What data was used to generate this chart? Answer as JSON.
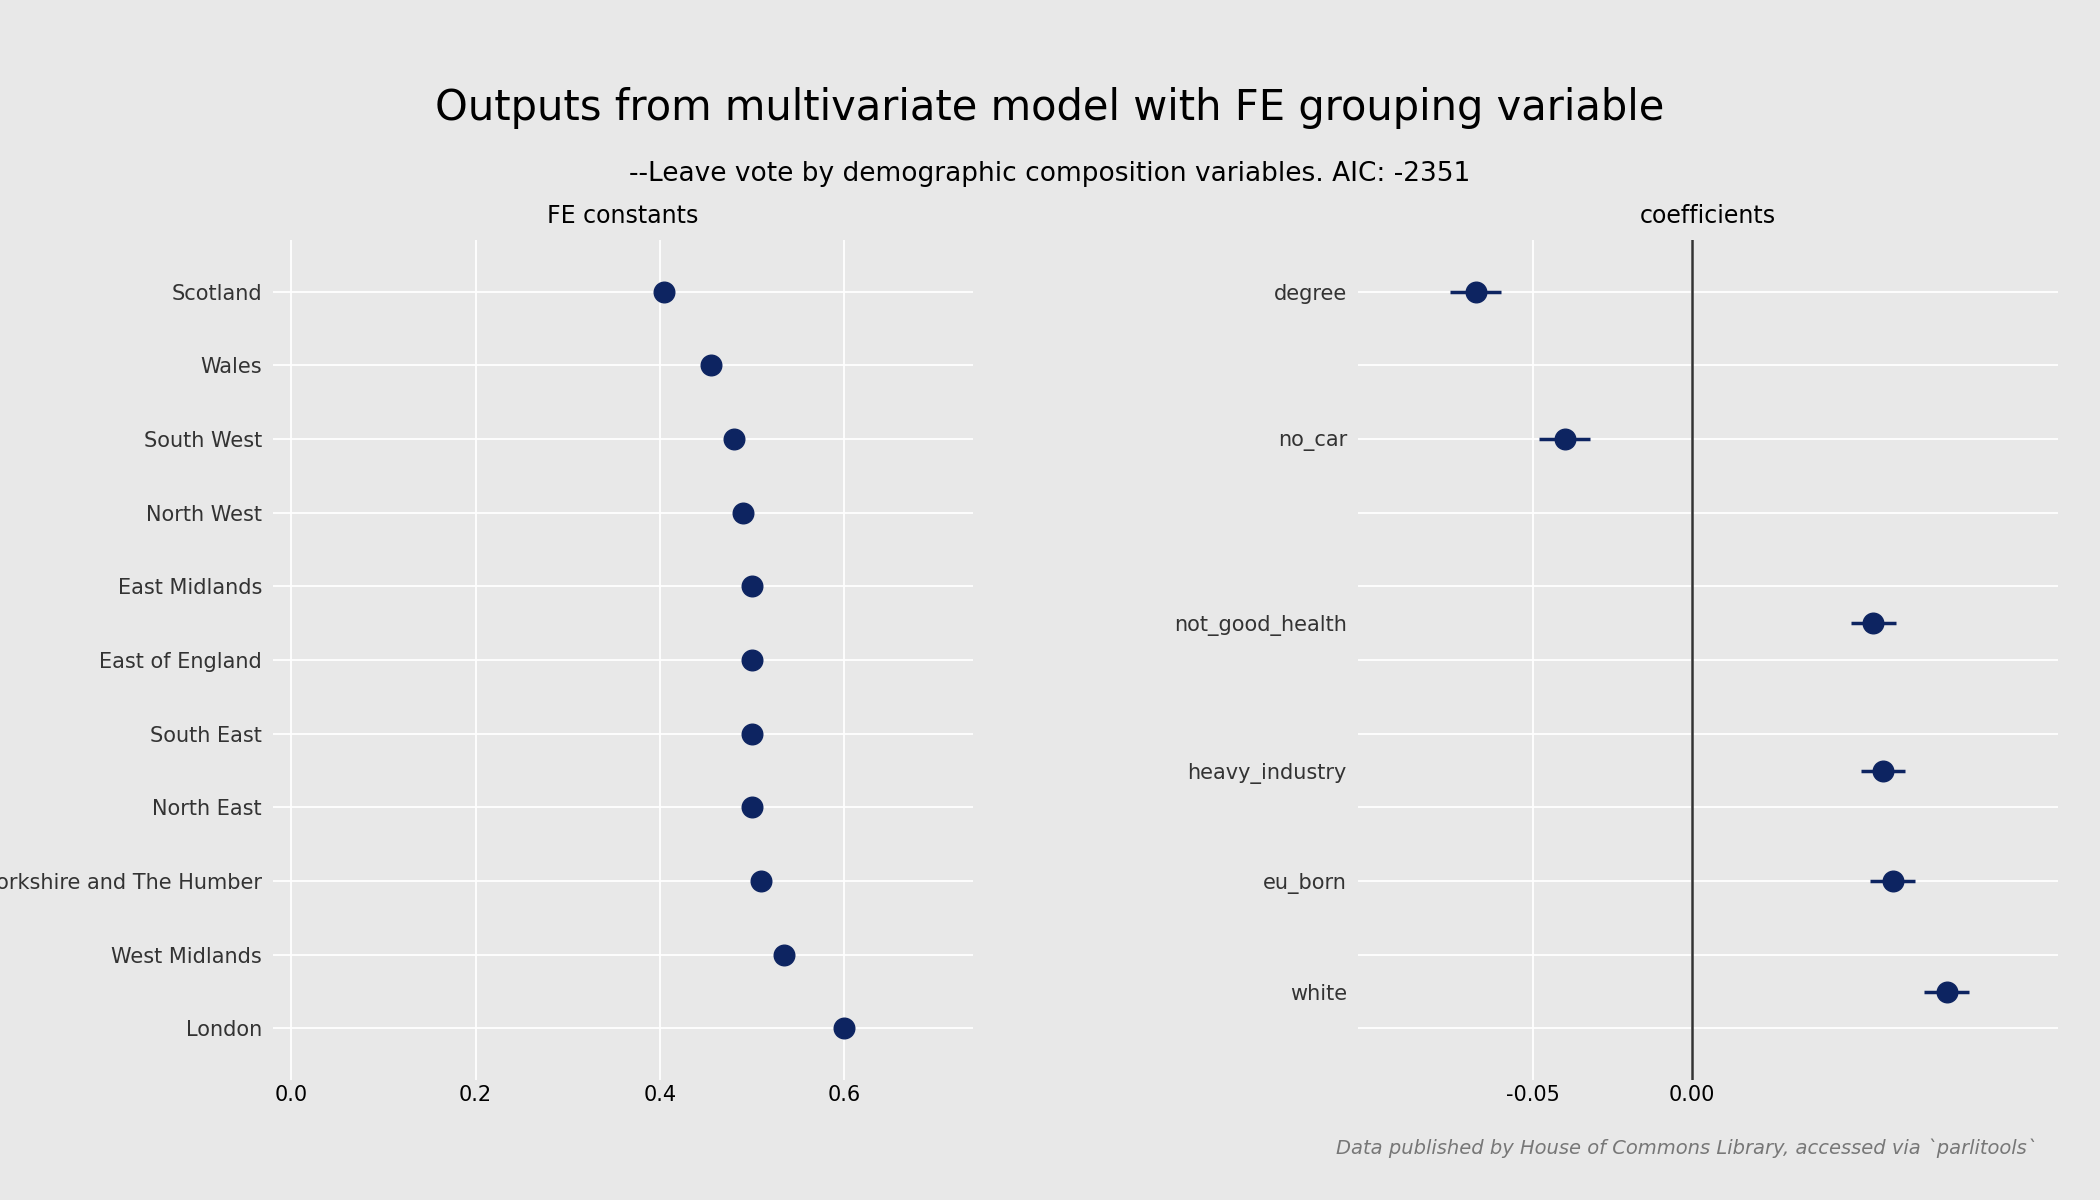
{
  "title": "Outputs from multivariate model with FE grouping variable",
  "subtitle": "--Leave vote by demographic composition variables. AIC: -2351",
  "background_color": "#e8e8e8",
  "dot_color": "#0d2461",
  "fe_regions": [
    "Scotland",
    "Wales",
    "South West",
    "North West",
    "East Midlands",
    "East of England",
    "South East",
    "North East",
    "Yorkshire and The Humber",
    "West Midlands",
    "London"
  ],
  "fe_values": [
    0.405,
    0.455,
    0.48,
    0.49,
    0.5,
    0.5,
    0.5,
    0.5,
    0.51,
    0.535,
    0.6
  ],
  "fe_xlim": [
    -0.02,
    0.74
  ],
  "fe_xticks": [
    0.0,
    0.2,
    0.4,
    0.6
  ],
  "fe_panel_title": "FE constants",
  "coef_vars": [
    "degree",
    "no_car",
    "not_good_health",
    "heavy_industry",
    "eu_born",
    "white"
  ],
  "coef_values": [
    -0.068,
    -0.04,
    0.057,
    0.06,
    0.063,
    0.08
  ],
  "coef_ci_low": [
    -0.076,
    -0.048,
    0.05,
    0.053,
    0.056,
    0.073
  ],
  "coef_ci_high": [
    -0.06,
    -0.032,
    0.064,
    0.067,
    0.07,
    0.087
  ],
  "coef_xlim": [
    -0.105,
    0.115
  ],
  "coef_xticks": [
    -0.05,
    0.0
  ],
  "coef_panel_title": "coefficients",
  "coef_vline": 0.0,
  "coef_y_positions": [
    10.0,
    8.0,
    5.5,
    3.5,
    2.0,
    0.5
  ],
  "footnote": "Data published by House of Commons Library, accessed via `parlitools`",
  "title_fontsize": 30,
  "subtitle_fontsize": 19,
  "panel_title_fontsize": 17,
  "tick_label_fontsize": 15,
  "footnote_fontsize": 14
}
